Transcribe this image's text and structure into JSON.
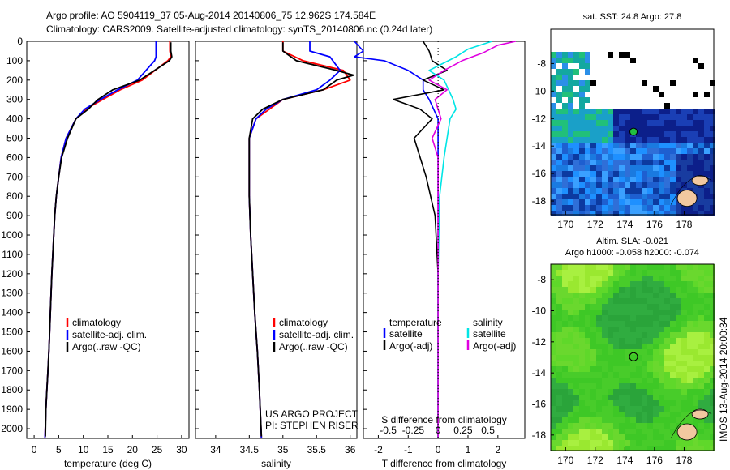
{
  "header": {
    "line1": "Argo profile: AO 5904119_37 05-Aug-2014 20140806_75 12.962S 174.584E",
    "line2": "Climatology: CARS2009. Satellite-adjusted climatology: synTS_20140806.nc (0.24d later)"
  },
  "credits": {
    "project": "US ARGO PROJECT",
    "pi": "PI: STEPHEN RISER",
    "imos": "IMOS 13-Aug-2014 20:00:34"
  },
  "colors": {
    "climatology": "#ff0000",
    "satellite": "#0000ff",
    "argo": "#000000",
    "sat_salinity": "#00e5e5",
    "argo_salinity": "#e000e0"
  },
  "chart_data": [
    {
      "type": "line",
      "id": "temperature",
      "xlabel": "temperature (deg C)",
      "ylabel": "",
      "xlim": [
        -1.5,
        31.5
      ],
      "ylim": [
        2050,
        0
      ],
      "xticks": [
        0,
        5,
        10,
        15,
        20,
        25,
        30
      ],
      "yticks": [
        0,
        100,
        200,
        300,
        400,
        500,
        600,
        700,
        800,
        900,
        1000,
        1100,
        1200,
        1300,
        1400,
        1500,
        1600,
        1700,
        1800,
        1900,
        2000
      ],
      "legend": [
        "climatology",
        "satellite-adj. clim.",
        "Argo(..raw -QC)"
      ],
      "series": [
        {
          "name": "climatology",
          "color": "#ff0000",
          "x": [
            27.6,
            27.6,
            27.8,
            27.2,
            22,
            17.5,
            14,
            10.5,
            8.5,
            6.5,
            5.5,
            5,
            4.5,
            4.2,
            4,
            3.6,
            3.3,
            3,
            2.8,
            2.6,
            2.4,
            2.2
          ],
          "y": [
            0,
            50,
            80,
            100,
            200,
            250,
            300,
            350,
            400,
            500,
            600,
            700,
            800,
            900,
            1000,
            1200,
            1400,
            1600,
            1700,
            1800,
            1900,
            2050
          ]
        },
        {
          "name": "satellite-adj. clim.",
          "color": "#0000ff",
          "x": [
            24.8,
            24.8,
            24.8,
            24.5,
            21,
            17,
            13.5,
            10.3,
            8.5,
            6.5,
            5.5,
            5,
            4.5,
            4.2,
            4,
            3.6,
            3.3,
            3,
            2.8,
            2.6,
            2.4,
            2.2
          ],
          "y": [
            0,
            50,
            80,
            100,
            200,
            250,
            300,
            350,
            400,
            500,
            600,
            700,
            800,
            900,
            1000,
            1200,
            1400,
            1600,
            1700,
            1800,
            1900,
            2050
          ]
        },
        {
          "name": "Argo(..raw -QC)",
          "color": "#000000",
          "x": [
            27.8,
            27.8,
            28,
            27.5,
            21.5,
            16,
            13,
            11,
            8.5,
            6.8,
            5.6,
            5,
            4.5,
            4.2,
            4,
            3.6,
            3.3,
            3,
            2.8,
            2.6,
            2.4,
            2.3
          ],
          "y": [
            5,
            50,
            80,
            100,
            200,
            250,
            300,
            350,
            400,
            500,
            600,
            700,
            800,
            900,
            1000,
            1200,
            1400,
            1600,
            1700,
            1800,
            1900,
            2040
          ]
        }
      ]
    },
    {
      "type": "line",
      "id": "salinity",
      "xlabel": "salinity",
      "ylabel": "",
      "xlim": [
        33.7,
        36.1
      ],
      "ylim": [
        2050,
        0
      ],
      "xticks": [
        34,
        34.5,
        35,
        35.5,
        36
      ],
      "legend": [
        "climatology",
        "satellite-adj. clim.",
        "Argo(..raw -QC)"
      ],
      "series": [
        {
          "name": "climatology",
          "color": "#ff0000",
          "x": [
            35.0,
            35.0,
            35.3,
            35.9,
            36.0,
            35.6,
            35.0,
            34.8,
            34.6,
            34.5,
            34.5,
            34.5,
            34.52,
            34.55,
            34.58,
            34.62,
            34.65,
            34.68
          ],
          "y": [
            0,
            50,
            100,
            150,
            200,
            250,
            300,
            350,
            400,
            500,
            600,
            800,
            1000,
            1200,
            1400,
            1600,
            1800,
            2050
          ]
        },
        {
          "name": "satellite-adj. clim.",
          "color": "#0000ff",
          "x": [
            35.4,
            35.4,
            35.7,
            35.85,
            35.7,
            35.5,
            35.0,
            34.75,
            34.6,
            34.5,
            34.5,
            34.5,
            34.52,
            34.55,
            34.58,
            34.62,
            34.65,
            34.68
          ],
          "y": [
            0,
            50,
            80,
            150,
            200,
            250,
            300,
            350,
            400,
            500,
            600,
            800,
            1000,
            1200,
            1400,
            1600,
            1800,
            2050
          ]
        },
        {
          "name": "Argo(..raw -QC)",
          "color": "#000000",
          "x": [
            35.0,
            35.0,
            35.2,
            35.8,
            36.05,
            35.8,
            35.6,
            35.0,
            34.7,
            34.55,
            34.5,
            34.5,
            34.52,
            34.55,
            34.58,
            34.62,
            34.65,
            34.68
          ],
          "y": [
            5,
            50,
            100,
            150,
            175,
            200,
            250,
            300,
            350,
            400,
            500,
            800,
            1000,
            1200,
            1400,
            1600,
            1800,
            2040
          ]
        }
      ]
    },
    {
      "type": "line",
      "id": "differences",
      "xlabel": "T difference from climatology",
      "x2label": "S difference from climatology",
      "xlim": [
        -2.5,
        2.9
      ],
      "x2ticks": [
        -0.5,
        -0.25,
        0,
        0.25,
        0.5
      ],
      "x2ticklabels": [
        "-0.5",
        "-0.25",
        "0",
        "0.25",
        "0.5"
      ],
      "ylim": [
        2050,
        0
      ],
      "xticks": [
        -2,
        -1,
        0,
        1,
        2
      ],
      "legend_temperature": [
        "temperature",
        "satellite",
        "Argo(-adj)"
      ],
      "legend_salinity": [
        "salinity",
        "satellite",
        "Argo(-adj)"
      ],
      "series": [
        {
          "name": "temperature satellite",
          "color": "#0000ff",
          "x": [
            -2.8,
            -2.5,
            -2.8,
            -1.8,
            -1,
            -0.5,
            -0.5,
            -0.3,
            0,
            0,
            0,
            0,
            0,
            0
          ],
          "y": [
            0,
            50,
            80,
            100,
            150,
            200,
            250,
            300,
            400,
            500,
            600,
            800,
            1200,
            2050
          ]
        },
        {
          "name": "temperature Argo(-adj)",
          "color": "#000000",
          "x": [
            -0.5,
            -0.3,
            -0.2,
            0.3,
            -0.5,
            0.2,
            -1.5,
            -0.6,
            -0.2,
            -0.8,
            -0.6,
            -0.4,
            -0.1,
            0,
            0
          ],
          "y": [
            0,
            50,
            100,
            150,
            200,
            250,
            300,
            350,
            400,
            500,
            600,
            700,
            900,
            1200,
            2050
          ]
        },
        {
          "name": "salinity satellite",
          "color": "#00e5e5",
          "x": [
            1.8,
            1.0,
            0.6,
            -0.3,
            0.2,
            0.5,
            0.6,
            0.4,
            0.3,
            0.2,
            0.05,
            0.0,
            0.0
          ],
          "y": [
            0,
            40,
            80,
            150,
            200,
            300,
            350,
            400,
            500,
            600,
            800,
            1200,
            2050
          ]
        },
        {
          "name": "salinity Argo(-adj)",
          "color": "#e000e0",
          "x": [
            2.6,
            2.0,
            1.5,
            0.8,
            0.2,
            -0.3,
            0.3,
            -0.1,
            0.1,
            -0.2,
            0.0,
            0.0,
            0.0
          ],
          "y": [
            0,
            20,
            60,
            100,
            150,
            200,
            250,
            300,
            400,
            500,
            600,
            1200,
            2050
          ]
        }
      ]
    },
    {
      "type": "heatmap",
      "id": "sst_map",
      "title": "sat. SST: 24.8  Argo: 27.8",
      "xlim": [
        169,
        180
      ],
      "ylim": [
        -19,
        -5.5
      ],
      "xticks": [
        170,
        172,
        174,
        176,
        178
      ],
      "yticks": [
        -8,
        -10,
        -12,
        -14,
        -16,
        -18
      ],
      "float_position": [
        174.584,
        -12.962
      ]
    },
    {
      "type": "heatmap",
      "id": "sla_map",
      "title": "Altim. SLA: -0.021",
      "subtitle": "Argo h1000: -0.058 h2000: -0.074",
      "xlim": [
        169,
        180
      ],
      "ylim": [
        -19,
        -7
      ],
      "xticks": [
        170,
        172,
        174,
        176,
        178
      ],
      "yticks": [
        -8,
        -10,
        -12,
        -14,
        -16,
        -18
      ],
      "float_position": [
        174.584,
        -12.962
      ]
    }
  ]
}
